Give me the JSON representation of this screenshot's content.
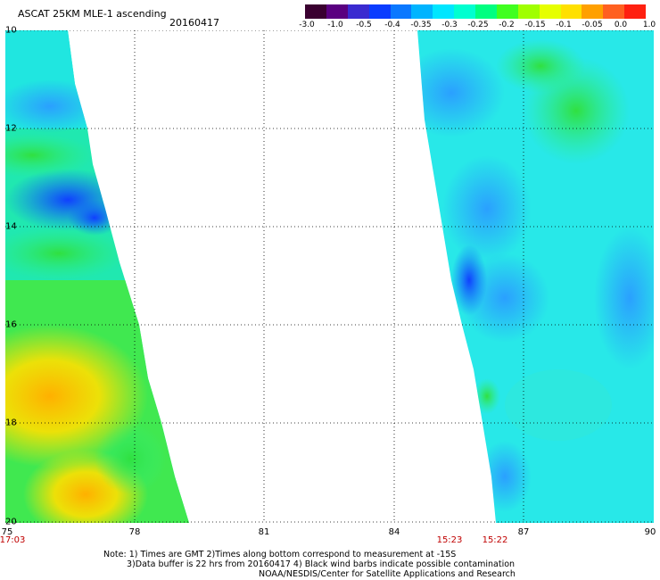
{
  "header": {
    "title": "ASCAT 25KM MLE-1 ascending",
    "date": "20160417"
  },
  "colorbar": {
    "colors": [
      "#3a0030",
      "#5a0080",
      "#3a2ad0",
      "#0a3cff",
      "#0a78ff",
      "#00b4ff",
      "#00e6ff",
      "#00ffd0",
      "#00ff80",
      "#40ff20",
      "#a0ff00",
      "#e6ff00",
      "#ffe000",
      "#ffa000",
      "#ff6020",
      "#ff2010"
    ],
    "labels": [
      "-3.0",
      "-1.0",
      "-0.5",
      "-0.4",
      "-0.35",
      "-0.3",
      "-0.25",
      "-0.2",
      "-0.15",
      "-0.1",
      "-0.05",
      "0.0",
      "1.0"
    ]
  },
  "map": {
    "lon_labels": [
      "75",
      "78",
      "81",
      "84",
      "87",
      "90"
    ],
    "lat_labels": [
      "10",
      "12",
      "14",
      "16",
      "18",
      "20"
    ],
    "time_labels": [
      "17:03",
      "15:23",
      "15:22"
    ]
  },
  "notes": {
    "line1": "Note: 1) Times are GMT 2)Times along bottom correspond to measurement at -15S",
    "line2": "3)Data buffer is 22 hrs from 20160417 4) Black wind barbs indicate possible contamination",
    "line3": "NOAA/NESDIS/Center for Satellite Applications and Research"
  }
}
